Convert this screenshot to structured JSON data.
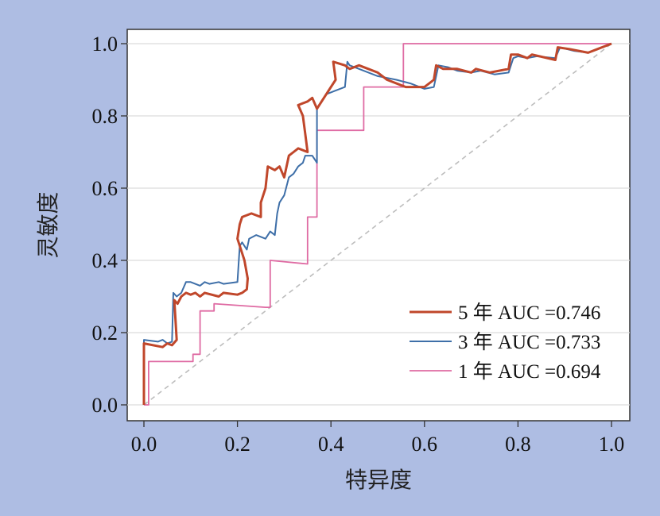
{
  "chart_data": {
    "type": "line",
    "xlabel": "特异度",
    "ylabel": "灵敏度",
    "xlim": [
      0,
      1
    ],
    "ylim": [
      0,
      1
    ],
    "x_ticks": [
      "0.0",
      "0.2",
      "0.4",
      "0.6",
      "0.8",
      "1.0"
    ],
    "y_ticks": [
      "0.0",
      "0.2",
      "0.4",
      "0.6",
      "0.8",
      "1.0"
    ],
    "grid": "horizontal",
    "legend_position": "bottom-right",
    "reference_line": {
      "from": [
        0,
        0
      ],
      "to": [
        1,
        1
      ],
      "style": "dashed",
      "color": "#bdbdbd"
    },
    "series": [
      {
        "name": "5 年 AUC =0.746",
        "color": "#c0472b",
        "points": [
          [
            0,
            0
          ],
          [
            0,
            0.17
          ],
          [
            0.04,
            0.16
          ],
          [
            0.05,
            0.17
          ],
          [
            0.06,
            0.165
          ],
          [
            0.07,
            0.18
          ],
          [
            0.065,
            0.29
          ],
          [
            0.072,
            0.28
          ],
          [
            0.08,
            0.3
          ],
          [
            0.09,
            0.31
          ],
          [
            0.1,
            0.305
          ],
          [
            0.11,
            0.31
          ],
          [
            0.12,
            0.3
          ],
          [
            0.13,
            0.31
          ],
          [
            0.16,
            0.3
          ],
          [
            0.17,
            0.31
          ],
          [
            0.2,
            0.305
          ],
          [
            0.21,
            0.31
          ],
          [
            0.22,
            0.32
          ],
          [
            0.222,
            0.35
          ],
          [
            0.215,
            0.4
          ],
          [
            0.21,
            0.42
          ],
          [
            0.2,
            0.46
          ],
          [
            0.205,
            0.5
          ],
          [
            0.21,
            0.52
          ],
          [
            0.23,
            0.53
          ],
          [
            0.25,
            0.52
          ],
          [
            0.25,
            0.56
          ],
          [
            0.26,
            0.6
          ],
          [
            0.265,
            0.66
          ],
          [
            0.28,
            0.65
          ],
          [
            0.29,
            0.66
          ],
          [
            0.3,
            0.63
          ],
          [
            0.31,
            0.69
          ],
          [
            0.32,
            0.7
          ],
          [
            0.33,
            0.71
          ],
          [
            0.35,
            0.7
          ],
          [
            0.345,
            0.75
          ],
          [
            0.34,
            0.8
          ],
          [
            0.33,
            0.83
          ],
          [
            0.35,
            0.84
          ],
          [
            0.36,
            0.85
          ],
          [
            0.37,
            0.82
          ],
          [
            0.4,
            0.88
          ],
          [
            0.41,
            0.9
          ],
          [
            0.405,
            0.95
          ],
          [
            0.43,
            0.94
          ],
          [
            0.44,
            0.93
          ],
          [
            0.46,
            0.94
          ],
          [
            0.48,
            0.93
          ],
          [
            0.5,
            0.92
          ],
          [
            0.52,
            0.9
          ],
          [
            0.56,
            0.88
          ],
          [
            0.58,
            0.88
          ],
          [
            0.6,
            0.88
          ],
          [
            0.61,
            0.89
          ],
          [
            0.62,
            0.9
          ],
          [
            0.625,
            0.94
          ],
          [
            0.64,
            0.93
          ],
          [
            0.67,
            0.93
          ],
          [
            0.7,
            0.92
          ],
          [
            0.71,
            0.93
          ],
          [
            0.74,
            0.92
          ],
          [
            0.78,
            0.93
          ],
          [
            0.785,
            0.97
          ],
          [
            0.8,
            0.97
          ],
          [
            0.82,
            0.96
          ],
          [
            0.83,
            0.97
          ],
          [
            0.88,
            0.955
          ],
          [
            0.885,
            0.99
          ],
          [
            0.91,
            0.985
          ],
          [
            0.95,
            0.975
          ],
          [
            0.97,
            0.985
          ],
          [
            1,
            1
          ]
        ]
      },
      {
        "name": "3 年 AUC =0.733",
        "color": "#3e6fa8",
        "points": [
          [
            0,
            0
          ],
          [
            0,
            0.18
          ],
          [
            0.03,
            0.175
          ],
          [
            0.04,
            0.18
          ],
          [
            0.05,
            0.17
          ],
          [
            0.06,
            0.175
          ],
          [
            0.063,
            0.31
          ],
          [
            0.07,
            0.3
          ],
          [
            0.08,
            0.31
          ],
          [
            0.09,
            0.34
          ],
          [
            0.1,
            0.34
          ],
          [
            0.12,
            0.33
          ],
          [
            0.13,
            0.34
          ],
          [
            0.14,
            0.335
          ],
          [
            0.16,
            0.34
          ],
          [
            0.17,
            0.335
          ],
          [
            0.2,
            0.34
          ],
          [
            0.205,
            0.44
          ],
          [
            0.21,
            0.45
          ],
          [
            0.22,
            0.43
          ],
          [
            0.225,
            0.46
          ],
          [
            0.24,
            0.47
          ],
          [
            0.26,
            0.46
          ],
          [
            0.27,
            0.48
          ],
          [
            0.28,
            0.47
          ],
          [
            0.285,
            0.53
          ],
          [
            0.29,
            0.56
          ],
          [
            0.3,
            0.58
          ],
          [
            0.31,
            0.63
          ],
          [
            0.32,
            0.64
          ],
          [
            0.33,
            0.66
          ],
          [
            0.34,
            0.67
          ],
          [
            0.345,
            0.69
          ],
          [
            0.36,
            0.69
          ],
          [
            0.37,
            0.67
          ],
          [
            0.37,
            0.82
          ],
          [
            0.38,
            0.84
          ],
          [
            0.39,
            0.86
          ],
          [
            0.41,
            0.87
          ],
          [
            0.43,
            0.88
          ],
          [
            0.435,
            0.95
          ],
          [
            0.44,
            0.94
          ],
          [
            0.46,
            0.93
          ],
          [
            0.5,
            0.91
          ],
          [
            0.54,
            0.9
          ],
          [
            0.57,
            0.89
          ],
          [
            0.6,
            0.875
          ],
          [
            0.62,
            0.88
          ],
          [
            0.63,
            0.94
          ],
          [
            0.65,
            0.935
          ],
          [
            0.67,
            0.925
          ],
          [
            0.7,
            0.92
          ],
          [
            0.72,
            0.925
          ],
          [
            0.75,
            0.915
          ],
          [
            0.78,
            0.92
          ],
          [
            0.79,
            0.96
          ],
          [
            0.8,
            0.965
          ],
          [
            0.82,
            0.96
          ],
          [
            0.84,
            0.965
          ],
          [
            0.88,
            0.96
          ],
          [
            0.89,
            0.99
          ],
          [
            0.92,
            0.98
          ],
          [
            0.95,
            0.975
          ],
          [
            0.97,
            0.985
          ],
          [
            1,
            1
          ]
        ]
      },
      {
        "name": "1 年 AUC =0.694",
        "color": "#df6ba3",
        "points": [
          [
            0,
            0
          ],
          [
            0.01,
            0
          ],
          [
            0.01,
            0.12
          ],
          [
            0.105,
            0.12
          ],
          [
            0.105,
            0.14
          ],
          [
            0.12,
            0.14
          ],
          [
            0.12,
            0.26
          ],
          [
            0.15,
            0.26
          ],
          [
            0.15,
            0.28
          ],
          [
            0.26,
            0.27
          ],
          [
            0.27,
            0.27
          ],
          [
            0.27,
            0.4
          ],
          [
            0.35,
            0.39
          ],
          [
            0.35,
            0.52
          ],
          [
            0.37,
            0.52
          ],
          [
            0.37,
            0.76
          ],
          [
            0.47,
            0.76
          ],
          [
            0.47,
            0.88
          ],
          [
            0.555,
            0.88
          ],
          [
            0.555,
            1
          ],
          [
            1,
            1
          ]
        ]
      }
    ]
  }
}
